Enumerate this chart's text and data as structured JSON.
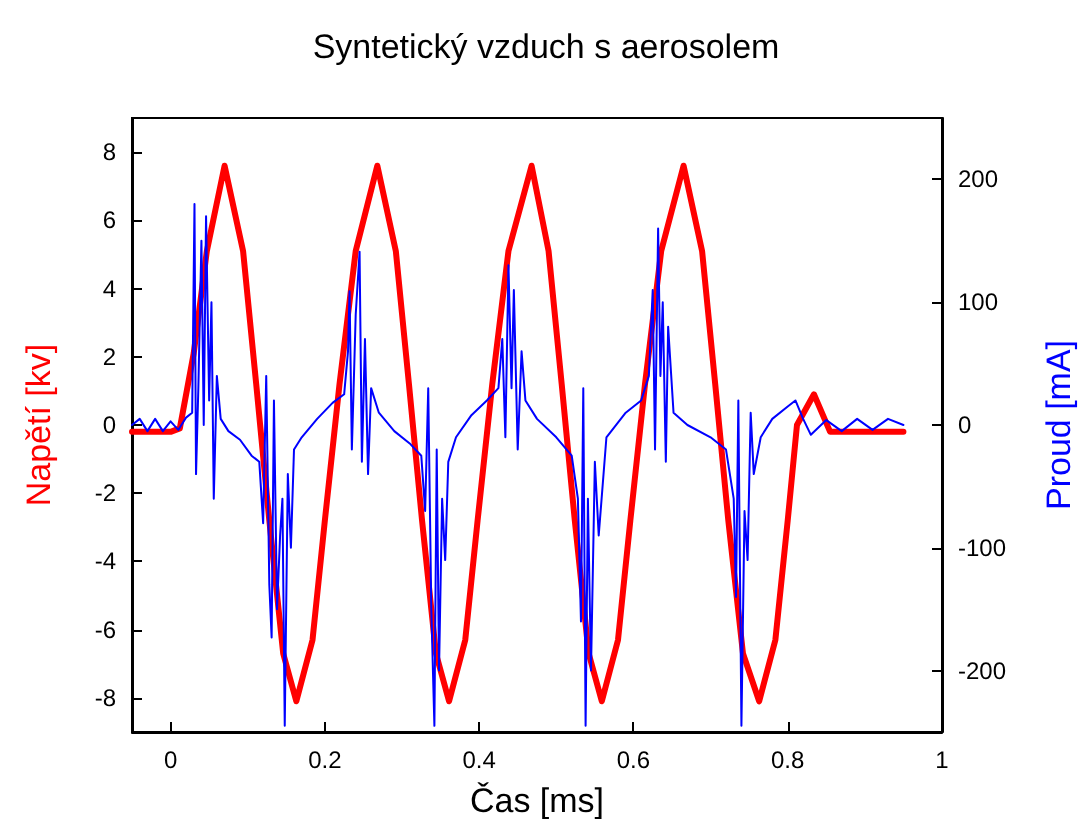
{
  "chart_data": {
    "type": "line",
    "title": "Syntetický vzduch s aerosolem",
    "xlabel": "Čas [ms]",
    "ylabel": "Napětí [kv]",
    "y2label": "Proud [mA]",
    "xlim": [
      -0.05,
      1
    ],
    "xticks": [
      0,
      0.2,
      0.4,
      0.6,
      0.8,
      1
    ],
    "ylim": [
      -9,
      9
    ],
    "yticks": [
      -8,
      -6,
      -4,
      -2,
      0,
      2,
      4,
      6,
      8
    ],
    "y2lim": [
      -250,
      250
    ],
    "y2ticks": [
      -200,
      -100,
      0,
      100,
      200
    ],
    "grid": false,
    "marker": "none",
    "line_style": "solid",
    "series": [
      {
        "color": "#ff0000",
        "x": [
          -0.05,
          0,
          0.012,
          0.03,
          0.047,
          0.07,
          0.094,
          0.111,
          0.128,
          0.146,
          0.163,
          0.184,
          0.2,
          0.219,
          0.24,
          0.268,
          0.292,
          0.309,
          0.326,
          0.344,
          0.361,
          0.382,
          0.398,
          0.417,
          0.438,
          0.468,
          0.49,
          0.507,
          0.524,
          0.542,
          0.559,
          0.58,
          0.596,
          0.615,
          0.636,
          0.665,
          0.689,
          0.706,
          0.723,
          0.742,
          0.763,
          0.784,
          0.8,
          0.812,
          0.834,
          0.855,
          0.95
        ],
        "values": [
          -0.2,
          -0.2,
          -0.1,
          2.1,
          5.1,
          7.6,
          5.1,
          1.2,
          -2.8,
          -6.7,
          -8.1,
          -6.3,
          -2.8,
          1.2,
          5.1,
          7.6,
          5.1,
          1.2,
          -2.8,
          -6.7,
          -8.1,
          -6.3,
          -2.8,
          1.2,
          5.1,
          7.6,
          5.1,
          1.2,
          -2.8,
          -6.7,
          -8.1,
          -6.3,
          -2.8,
          1.2,
          5.1,
          7.6,
          5.1,
          1.2,
          -2.8,
          -6.7,
          -8.1,
          -6.3,
          -2.8,
          0,
          0.9,
          -0.2,
          -0.2
        ]
      },
      {
        "color": "#0000ff",
        "axis": "y2",
        "x": [
          -0.05,
          -0.04,
          -0.03,
          -0.02,
          -0.01,
          0,
          0.01,
          0.02,
          0.028,
          0.031,
          0.033,
          0.036,
          0.04,
          0.043,
          0.046,
          0.05,
          0.053,
          0.056,
          0.06,
          0.065,
          0.075,
          0.09,
          0.105,
          0.115,
          0.12,
          0.124,
          0.128,
          0.131,
          0.134,
          0.138,
          0.142,
          0.145,
          0.148,
          0.152,
          0.156,
          0.16,
          0.17,
          0.19,
          0.21,
          0.225,
          0.23,
          0.232,
          0.235,
          0.24,
          0.245,
          0.248,
          0.252,
          0.256,
          0.26,
          0.27,
          0.29,
          0.31,
          0.325,
          0.33,
          0.334,
          0.338,
          0.342,
          0.345,
          0.348,
          0.352,
          0.356,
          0.36,
          0.37,
          0.39,
          0.41,
          0.425,
          0.43,
          0.434,
          0.438,
          0.442,
          0.445,
          0.45,
          0.455,
          0.46,
          0.475,
          0.5,
          0.52,
          0.528,
          0.532,
          0.535,
          0.538,
          0.541,
          0.545,
          0.55,
          0.555,
          0.565,
          0.59,
          0.61,
          0.62,
          0.625,
          0.628,
          0.632,
          0.635,
          0.638,
          0.642,
          0.645,
          0.652,
          0.67,
          0.7,
          0.72,
          0.73,
          0.733,
          0.736,
          0.74,
          0.744,
          0.748,
          0.752,
          0.756,
          0.765,
          0.78,
          0.8,
          0.81,
          0.82,
          0.83,
          0.85,
          0.87,
          0.89,
          0.91,
          0.93,
          0.95
        ],
        "values": [
          0,
          5,
          -5,
          5,
          -5,
          3,
          -4,
          6,
          10,
          180,
          -40,
          30,
          150,
          0,
          170,
          20,
          100,
          -60,
          40,
          5,
          -5,
          -12,
          -25,
          -30,
          -80,
          40,
          -130,
          -173,
          20,
          -150,
          -90,
          -60,
          -245,
          -40,
          -100,
          -20,
          -10,
          5,
          18,
          25,
          60,
          109,
          -20,
          90,
          141,
          -30,
          70,
          -40,
          30,
          10,
          -5,
          -15,
          -25,
          -70,
          30,
          -150,
          -245,
          -20,
          -200,
          -60,
          -110,
          -30,
          -10,
          8,
          20,
          30,
          70,
          -10,
          130,
          30,
          110,
          -20,
          60,
          20,
          5,
          -10,
          -25,
          -60,
          -160,
          30,
          -245,
          -60,
          -200,
          -30,
          -90,
          -10,
          10,
          20,
          40,
          110,
          -20,
          160,
          40,
          100,
          -30,
          80,
          10,
          0,
          -10,
          -20,
          -60,
          -140,
          20,
          -245,
          -70,
          -110,
          10,
          -40,
          -10,
          5,
          15,
          20,
          5,
          -8,
          4,
          -5,
          5,
          -4,
          5,
          0
        ]
      }
    ]
  }
}
